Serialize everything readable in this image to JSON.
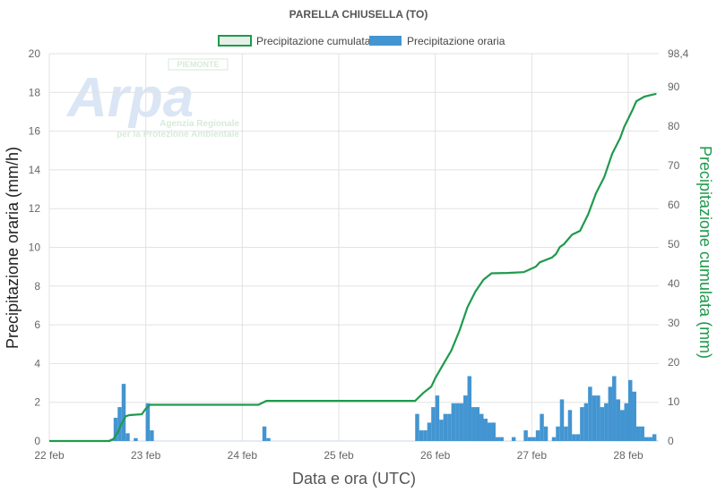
{
  "chart_data": {
    "type": "bar+line",
    "title": "PARELLA CHIUSELLA (TO)",
    "xlabel": "Data e ora (UTC)",
    "ylabel_left": "Precipitazione oraria (mm/h)",
    "ylabel_right": "Precipitazione cumulata (mm)",
    "x_ticks": [
      "22 feb",
      "23 feb",
      "24 feb",
      "25 feb",
      "26 feb",
      "27 feb",
      "28 feb"
    ],
    "y_left": {
      "min": 0,
      "max": 20,
      "ticks": [
        "0",
        "2",
        "4",
        "6",
        "8",
        "10",
        "12",
        "14",
        "16",
        "18",
        "20"
      ]
    },
    "y_right": {
      "min": 0,
      "max": 98.4,
      "ticks": [
        "0",
        "10",
        "20",
        "30",
        "40",
        "50",
        "60",
        "70",
        "80",
        "90"
      ],
      "max_label": "98,4"
    },
    "grid": true,
    "legend_position": "top",
    "colors": {
      "hourly": "#4395d1",
      "cumulative": "#1e9a4c"
    },
    "series": [
      {
        "name": "Precipitazione oraria",
        "type": "bar",
        "axis": "left",
        "data": [
          [
            "22 feb 15:00",
            0.1
          ],
          [
            "22 feb 16:00",
            1.2
          ],
          [
            "22 feb 17:00",
            1.75
          ],
          [
            "22 feb 18:00",
            2.95
          ],
          [
            "22 feb 19:00",
            0.4
          ],
          [
            "22 feb 21:00",
            0.15
          ],
          [
            "23 feb 00:00",
            1.95
          ],
          [
            "23 feb 01:00",
            0.55
          ],
          [
            "24 feb 05:00",
            0.75
          ],
          [
            "24 feb 06:00",
            0.15
          ],
          [
            "25 feb 19:00",
            1.4
          ],
          [
            "25 feb 20:00",
            0.55
          ],
          [
            "25 feb 21:00",
            0.55
          ],
          [
            "25 feb 22:00",
            0.95
          ],
          [
            "25 feb 23:00",
            1.75
          ],
          [
            "26 feb 00:00",
            2.35
          ],
          [
            "26 feb 01:00",
            1.1
          ],
          [
            "26 feb 02:00",
            1.4
          ],
          [
            "26 feb 03:00",
            1.4
          ],
          [
            "26 feb 04:00",
            1.95
          ],
          [
            "26 feb 05:00",
            1.95
          ],
          [
            "26 feb 06:00",
            1.95
          ],
          [
            "26 feb 07:00",
            2.35
          ],
          [
            "26 feb 08:00",
            3.35
          ],
          [
            "26 feb 09:00",
            1.75
          ],
          [
            "26 feb 10:00",
            1.75
          ],
          [
            "26 feb 11:00",
            1.4
          ],
          [
            "26 feb 12:00",
            1.15
          ],
          [
            "26 feb 13:00",
            0.95
          ],
          [
            "26 feb 14:00",
            0.95
          ],
          [
            "26 feb 15:00",
            0.2
          ],
          [
            "26 feb 16:00",
            0.2
          ],
          [
            "26 feb 19:00",
            0.2
          ],
          [
            "26 feb 22:00",
            0.55
          ],
          [
            "26 feb 23:00",
            0.2
          ],
          [
            "27 feb 00:00",
            0.2
          ],
          [
            "27 feb 01:00",
            0.55
          ],
          [
            "27 feb 02:00",
            1.4
          ],
          [
            "27 feb 03:00",
            0.75
          ],
          [
            "27 feb 05:00",
            0.2
          ],
          [
            "27 feb 06:00",
            0.75
          ],
          [
            "27 feb 07:00",
            2.15
          ],
          [
            "27 feb 08:00",
            0.75
          ],
          [
            "27 feb 09:00",
            1.6
          ],
          [
            "27 feb 10:00",
            0.35
          ],
          [
            "27 feb 11:00",
            0.35
          ],
          [
            "27 feb 12:00",
            1.75
          ],
          [
            "27 feb 13:00",
            1.95
          ],
          [
            "27 feb 14:00",
            2.8
          ],
          [
            "27 feb 15:00",
            2.35
          ],
          [
            "27 feb 16:00",
            2.35
          ],
          [
            "27 feb 17:00",
            1.75
          ],
          [
            "27 feb 18:00",
            1.95
          ],
          [
            "27 feb 19:00",
            2.8
          ],
          [
            "27 feb 20:00",
            3.35
          ],
          [
            "27 feb 21:00",
            2.15
          ],
          [
            "27 feb 22:00",
            1.6
          ],
          [
            "27 feb 23:00",
            1.95
          ],
          [
            "28 feb 00:00",
            3.15
          ],
          [
            "28 feb 01:00",
            2.55
          ],
          [
            "28 feb 02:00",
            0.75
          ],
          [
            "28 feb 03:00",
            0.75
          ],
          [
            "28 feb 04:00",
            0.2
          ],
          [
            "28 feb 05:00",
            0.2
          ],
          [
            "28 feb 06:00",
            0.35
          ]
        ]
      },
      {
        "name": "Precipitazione cumulata",
        "type": "line",
        "axis": "right",
        "data": [
          [
            "22 feb 00:00",
            0
          ],
          [
            "22 feb 15:00",
            0
          ],
          [
            "22 feb 16:00",
            0.6
          ],
          [
            "22 feb 17:00",
            2.2
          ],
          [
            "22 feb 18:00",
            4.5
          ],
          [
            "22 feb 19:00",
            6.3
          ],
          [
            "22 feb 20:00",
            6.6
          ],
          [
            "22 feb 23:00",
            6.8
          ],
          [
            "23 feb 00:00",
            8.2
          ],
          [
            "23 feb 01:00",
            9.2
          ],
          [
            "24 feb 04:00",
            9.2
          ],
          [
            "24 feb 06:00",
            10.2
          ],
          [
            "25 feb 19:00",
            10.2
          ],
          [
            "25 feb 21:00",
            12.2
          ],
          [
            "25 feb 23:00",
            13.8
          ],
          [
            "26 feb 00:00",
            16
          ],
          [
            "26 feb 02:00",
            19.5
          ],
          [
            "26 feb 04:00",
            23
          ],
          [
            "26 feb 06:00",
            28
          ],
          [
            "26 feb 08:00",
            34
          ],
          [
            "26 feb 10:00",
            38
          ],
          [
            "26 feb 12:00",
            41
          ],
          [
            "26 feb 14:00",
            42.6
          ],
          [
            "26 feb 18:00",
            42.7
          ],
          [
            "26 feb 22:00",
            42.9
          ],
          [
            "27 feb 01:00",
            44.3
          ],
          [
            "27 feb 02:00",
            45.4
          ],
          [
            "27 feb 05:00",
            46.6
          ],
          [
            "27 feb 06:00",
            47.5
          ],
          [
            "27 feb 07:00",
            49.3
          ],
          [
            "27 feb 08:00",
            50
          ],
          [
            "27 feb 10:00",
            52.4
          ],
          [
            "27 feb 12:00",
            53.4
          ],
          [
            "27 feb 14:00",
            57.5
          ],
          [
            "27 feb 16:00",
            63
          ],
          [
            "27 feb 18:00",
            67
          ],
          [
            "27 feb 20:00",
            73
          ],
          [
            "27 feb 22:00",
            77
          ],
          [
            "27 feb 23:00",
            79.8
          ],
          [
            "28 feb 01:00",
            84
          ],
          [
            "28 feb 02:00",
            86.3
          ],
          [
            "28 feb 04:00",
            87.5
          ],
          [
            "28 feb 06:00",
            88
          ],
          [
            "28 feb 07:00",
            88.2
          ]
        ]
      }
    ]
  },
  "logo": {
    "name": "Arpa",
    "region": "PIEMONTE",
    "line1": "Agenzia Regionale",
    "line2": "per la Protezione Ambientale"
  }
}
